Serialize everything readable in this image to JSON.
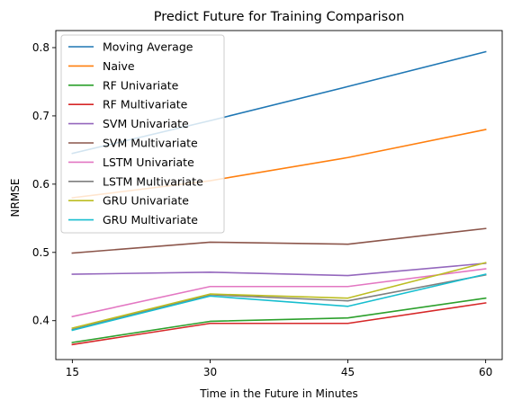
{
  "chart_data": {
    "type": "line",
    "title": "Predict Future for Training Comparison",
    "xlabel": "Time in the Future in Minutes",
    "ylabel": "NRMSE",
    "x": [
      15,
      30,
      45,
      60
    ],
    "x_ticks": [
      "15",
      "30",
      "45",
      "60"
    ],
    "y_ticks": [
      "0.4",
      "0.5",
      "0.6",
      "0.7",
      "0.8"
    ],
    "y_tick_values": [
      0.4,
      0.5,
      0.6,
      0.7,
      0.8
    ],
    "ylim": [
      0.343,
      0.825
    ],
    "xlim": [
      13.2,
      61.8
    ],
    "grid": false,
    "legend_position": "top-left",
    "series": [
      {
        "name": "Moving Average",
        "color": "#1f77b4",
        "values": [
          0.645,
          0.693,
          0.743,
          0.794
        ]
      },
      {
        "name": "Naive",
        "color": "#ff7f0e",
        "values": [
          0.58,
          0.605,
          0.639,
          0.68
        ]
      },
      {
        "name": "RF Univariate",
        "color": "#2ca02c",
        "values": [
          0.368,
          0.399,
          0.404,
          0.433
        ]
      },
      {
        "name": "RF Multivariate",
        "color": "#d62728",
        "values": [
          0.365,
          0.396,
          0.396,
          0.426
        ]
      },
      {
        "name": "SVM Univariate",
        "color": "#9467bd",
        "values": [
          0.468,
          0.471,
          0.466,
          0.484
        ]
      },
      {
        "name": "SVM Multivariate",
        "color": "#8c564b",
        "values": [
          0.499,
          0.515,
          0.512,
          0.535
        ]
      },
      {
        "name": "LSTM Univariate",
        "color": "#e377c2",
        "values": [
          0.406,
          0.45,
          0.45,
          0.476
        ]
      },
      {
        "name": "LSTM Multivariate",
        "color": "#7f7f7f",
        "values": [
          0.387,
          0.438,
          0.429,
          0.467
        ]
      },
      {
        "name": "GRU Univariate",
        "color": "#bcbd22",
        "values": [
          0.389,
          0.439,
          0.433,
          0.485
        ]
      },
      {
        "name": "GRU Multivariate",
        "color": "#17becf",
        "values": [
          0.386,
          0.436,
          0.421,
          0.468
        ]
      }
    ]
  }
}
